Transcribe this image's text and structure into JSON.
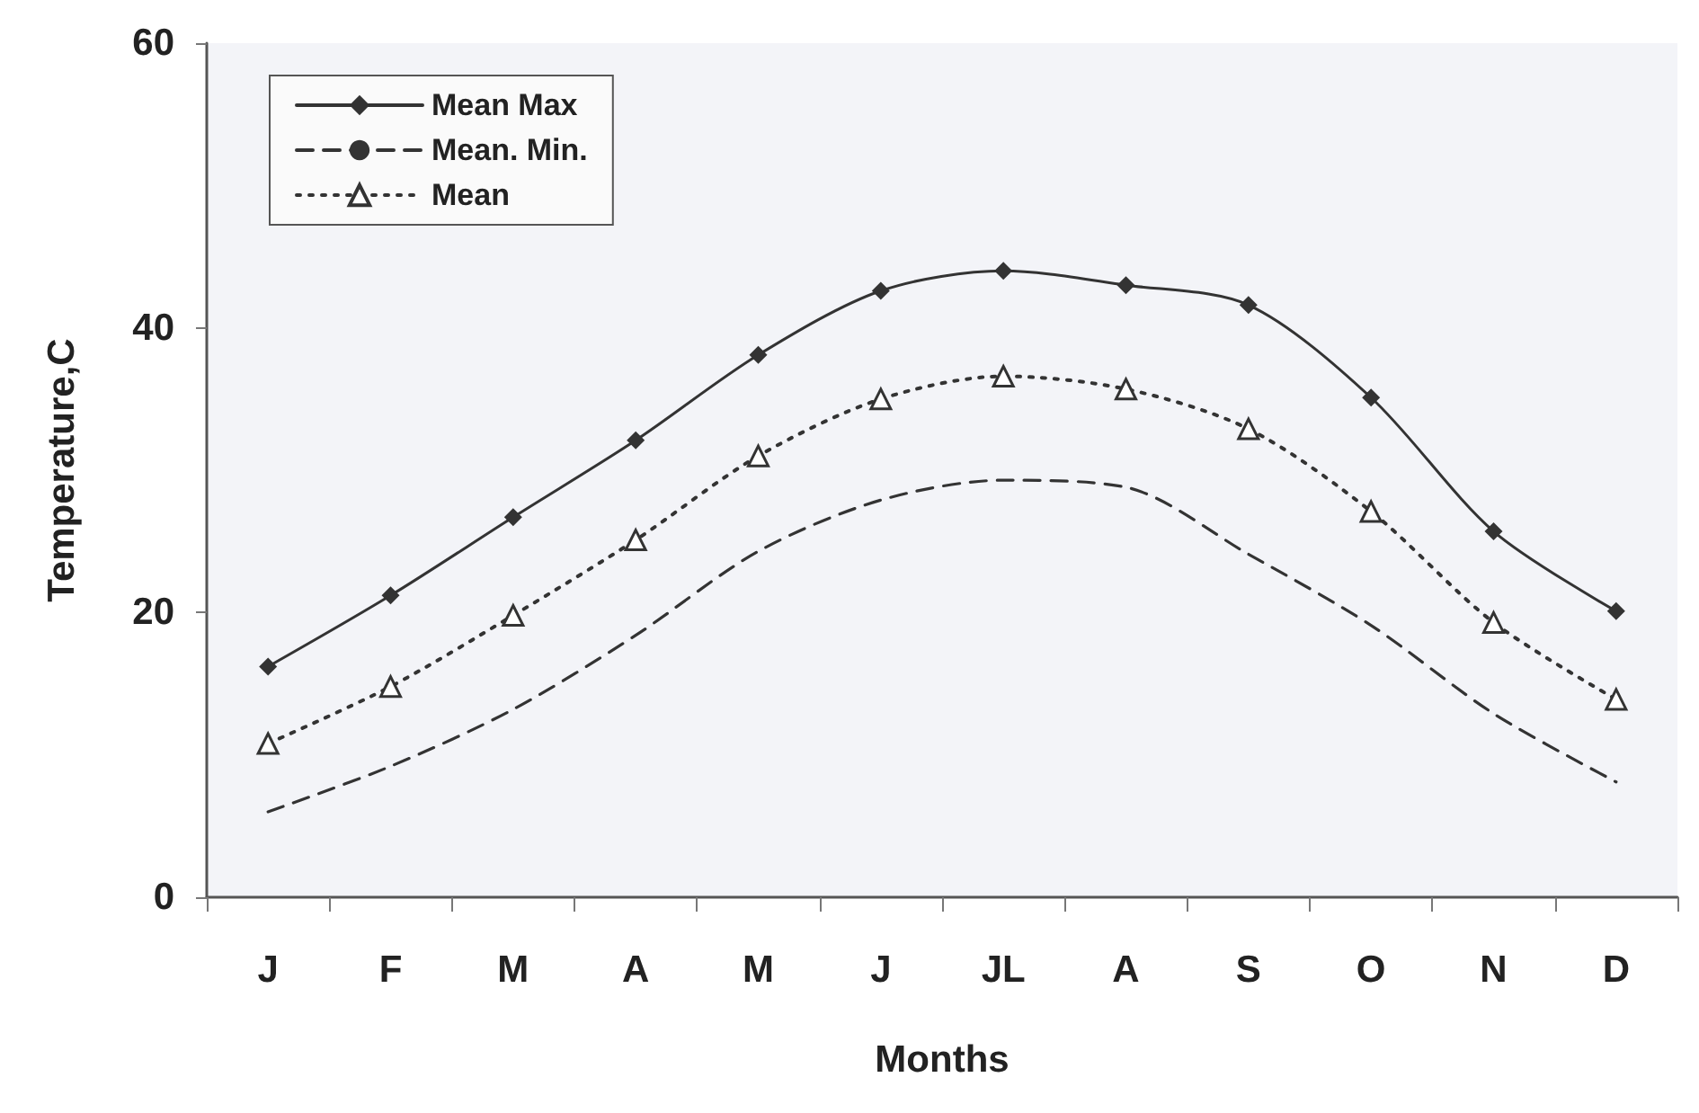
{
  "chart_data": {
    "type": "line",
    "xlabel": "Months",
    "ylabel": "Temperature,C",
    "categories": [
      "J",
      "F",
      "M",
      "A",
      "M",
      "J",
      "JL",
      "A",
      "S",
      "O",
      "N",
      "D"
    ],
    "series": [
      {
        "name": "Mean Max",
        "color": "#333333",
        "marker": "diamond",
        "line_style": "solid",
        "values": [
          16.2,
          21.2,
          26.7,
          32.1,
          38.1,
          42.6,
          44.0,
          43.0,
          41.6,
          35.1,
          25.7,
          20.1
        ]
      },
      {
        "name": "Mean. Min.",
        "color": "#333333",
        "marker": "none",
        "line_style": "dashed",
        "values": [
          6.0,
          9.2,
          13.2,
          18.4,
          24.3,
          27.9,
          29.3,
          28.8,
          24.1,
          19.1,
          12.9,
          8.1
        ]
      },
      {
        "name": "Mean",
        "color": "#333333",
        "marker": "triangle",
        "line_style": "dotted",
        "values": [
          10.8,
          14.8,
          19.8,
          25.1,
          31.0,
          35.0,
          36.6,
          35.7,
          32.9,
          27.1,
          19.3,
          13.9
        ]
      }
    ],
    "ylim": [
      0,
      60
    ],
    "yticks": [
      0,
      20,
      40,
      60
    ],
    "grid": false,
    "legend": "top left"
  }
}
